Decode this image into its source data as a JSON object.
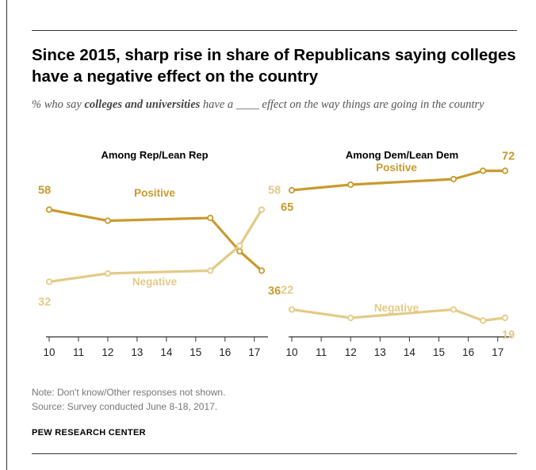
{
  "title": "Since 2015, sharp rise in share of Republicans saying colleges have a negative effect on the country",
  "subtitle": {
    "prefix": "% who say",
    "emphasis": "colleges and universities",
    "suffix": "have a ____ effect on the way things are going in the country"
  },
  "notes": {
    "note": "Note: Don't know/Other responses not shown.",
    "source": "Source: Survey conducted June 8-18, 2017."
  },
  "brand": "PEW RESEARCH CENTER",
  "colors": {
    "positive": "#C99A2E",
    "negative": "#E3CB86",
    "axis": "#333333",
    "text": "#000000"
  },
  "chart_data": [
    {
      "type": "line",
      "title": "Among Rep/Lean Rep",
      "x": [
        10,
        12,
        15.5,
        16.5,
        17.25
      ],
      "xticks": [
        "10",
        "11",
        "12",
        "13",
        "14",
        "15",
        "16",
        "17"
      ],
      "xlim": [
        10,
        17.25
      ],
      "ylim": [
        15,
        75
      ],
      "grid": false,
      "series": [
        {
          "name": "Positive",
          "values": [
            58,
            54,
            55,
            43,
            36
          ],
          "start_label": "58",
          "end_label": "36"
        },
        {
          "name": "Negative",
          "values": [
            32,
            35,
            36,
            45,
            58
          ],
          "start_label": "32",
          "end_label": "58"
        }
      ]
    },
    {
      "type": "line",
      "title": "Among Dem/Lean Dem",
      "x": [
        10,
        12,
        15.5,
        16.5,
        17.25
      ],
      "xticks": [
        "10",
        "11",
        "12",
        "13",
        "14",
        "15",
        "16",
        "17"
      ],
      "xlim": [
        10,
        17.25
      ],
      "ylim": [
        15,
        75
      ],
      "grid": false,
      "series": [
        {
          "name": "Positive",
          "values": [
            65,
            67,
            69,
            72,
            72
          ],
          "start_label": "65",
          "end_label": "72"
        },
        {
          "name": "Negative",
          "values": [
            22,
            19,
            22,
            18,
            19
          ],
          "start_label": "22",
          "end_label": "19"
        }
      ]
    }
  ]
}
